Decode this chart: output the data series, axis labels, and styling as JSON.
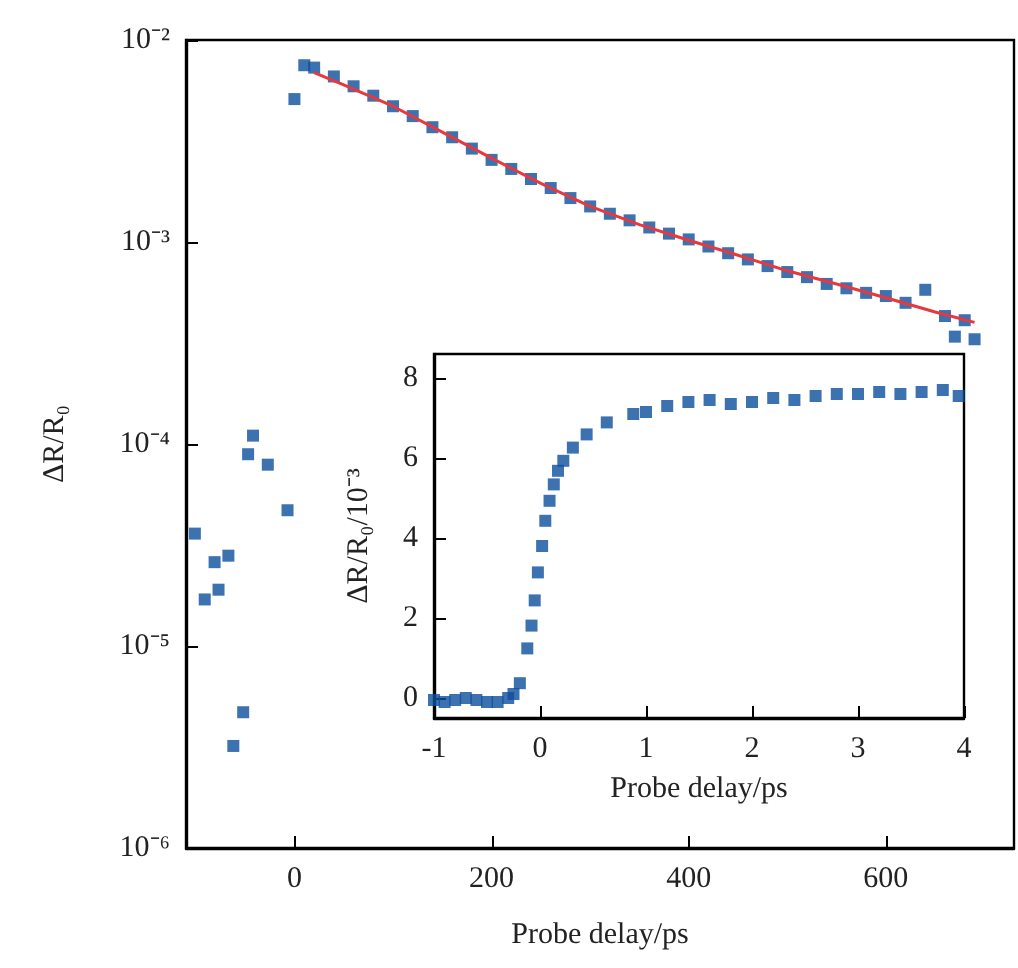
{
  "chart_data": [
    {
      "type": "scatter",
      "xlabel": "Probe delay/ps",
      "ylabel": "ΔR/R₀",
      "xlim": [
        -110,
        730
      ],
      "ylim": [
        1e-06,
        0.01
      ],
      "xticks": [
        0,
        200,
        400,
        600
      ],
      "yticks": [
        {
          "value": 1e-06,
          "label": "10⁻⁶"
        },
        {
          "value": 1e-05,
          "label": "10⁻⁵"
        },
        {
          "value": 0.0001,
          "label": "10⁻⁴"
        },
        {
          "value": 0.001,
          "label": "10⁻³"
        },
        {
          "value": 0.01,
          "label": "10⁻²"
        }
      ],
      "log": "y",
      "grid": false,
      "series": [
        {
          "type": "scatter",
          "marker": "square",
          "color": "#0d4f9e",
          "x": [
            -101,
            -91,
            -81,
            -77,
            -67,
            -62,
            -52,
            -47,
            -42,
            -27,
            -7,
            0,
            10,
            20,
            40,
            60,
            80,
            100,
            120,
            140,
            160,
            180,
            200,
            220,
            240,
            260,
            280,
            300,
            320,
            340,
            360,
            380,
            400,
            420,
            440,
            460,
            480,
            500,
            520,
            540,
            560,
            580,
            600,
            620,
            640,
            660,
            670,
            680,
            690
          ],
          "values": [
            3.6e-05,
            1.7e-05,
            2.6e-05,
            1.9e-05,
            2.8e-05,
            3.2e-06,
            4.7e-06,
            8.9e-05,
            0.00011,
            7.9e-05,
            4.7e-05,
            0.0051,
            0.0075,
            0.0073,
            0.0066,
            0.0059,
            0.0053,
            0.0047,
            0.0042,
            0.0037,
            0.0033,
            0.0029,
            0.00255,
            0.0023,
            0.00205,
            0.00185,
            0.00165,
            0.0015,
            0.00138,
            0.00128,
            0.00118,
            0.0011,
            0.00103,
            0.00095,
            0.00088,
            0.00082,
            0.00076,
            0.00071,
            0.00067,
            0.00062,
            0.00059,
            0.00056,
            0.00054,
            0.0005,
            0.00058,
            0.00043,
            0.00034,
            0.00041,
            0.00033
          ]
        },
        {
          "type": "line",
          "marker": "none",
          "color": "#e8383d",
          "x": [
            20,
            50,
            100,
            150,
            200,
            250,
            300,
            350,
            400,
            450,
            500,
            550,
            600,
            650,
            690
          ],
          "values": [
            0.0069,
            0.006,
            0.0047,
            0.0035,
            0.0026,
            0.00195,
            0.0015,
            0.00122,
            0.00102,
            0.00086,
            0.00072,
            0.00062,
            0.00053,
            0.00045,
            0.0004
          ]
        }
      ]
    },
    {
      "type": "scatter",
      "xlabel": "Probe delay/ps",
      "ylabel": "ΔR/R₀/10⁻³",
      "xlim": [
        -1,
        4
      ],
      "ylim": [
        -0.5,
        8.6
      ],
      "xticks": [
        -1,
        0,
        1,
        2,
        3,
        4
      ],
      "yticks": [
        0,
        2,
        4,
        6,
        8
      ],
      "marker": "square",
      "grid": false,
      "series": [
        {
          "type": "scatter",
          "color": "#0d4f9e",
          "x": [
            -1,
            -0.9,
            -0.8,
            -0.7,
            -0.6,
            -0.5,
            -0.4,
            -0.3,
            -0.25,
            -0.19,
            -0.12,
            -0.08,
            -0.05,
            -0.02,
            0.02,
            0.05,
            0.09,
            0.13,
            0.17,
            0.22,
            0.31,
            0.44,
            0.63,
            0.88,
            1.0,
            1.2,
            1.4,
            1.6,
            1.8,
            2.0,
            2.2,
            2.4,
            2.6,
            2.8,
            3.0,
            3.2,
            3.4,
            3.6,
            3.8,
            3.95
          ],
          "values": [
            -0.05,
            -0.1,
            -0.05,
            0,
            -0.05,
            -0.1,
            -0.1,
            0,
            0.1,
            0.37,
            1.24,
            1.81,
            2.44,
            3.14,
            3.8,
            4.43,
            4.93,
            5.34,
            5.68,
            5.93,
            6.26,
            6.59,
            6.89,
            7.1,
            7.15,
            7.3,
            7.4,
            7.45,
            7.35,
            7.4,
            7.5,
            7.45,
            7.55,
            7.6,
            7.6,
            7.65,
            7.6,
            7.65,
            7.7,
            7.55
          ]
        }
      ]
    }
  ]
}
